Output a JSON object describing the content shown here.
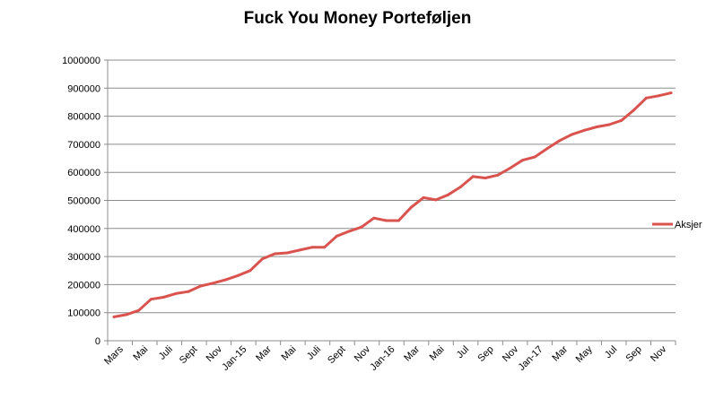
{
  "chart_data": {
    "type": "line",
    "title": "Fuck You Money Porteføljen",
    "xlabel": "",
    "ylabel": "",
    "ylim": [
      0,
      1000000
    ],
    "yticks": [
      0,
      100000,
      200000,
      300000,
      400000,
      500000,
      600000,
      700000,
      800000,
      900000,
      1000000
    ],
    "grid": true,
    "legend_position": "right",
    "color": "#d9534f",
    "x_tick_labels": [
      "Mars",
      "Mai",
      "Juli",
      "Sept",
      "Nov",
      "Jan-15",
      "Mar",
      "Mai",
      "Juli",
      "Sept",
      "Nov",
      "Jan-16",
      "Mar",
      "Mai",
      "Jul",
      "Sep",
      "Nov",
      "Jan-17",
      "Mar",
      "May",
      "Jul",
      "Sep",
      "Nov"
    ],
    "series": [
      {
        "name": "Aksjer",
        "values": [
          85000,
          93000,
          108000,
          148000,
          155000,
          168000,
          175000,
          195000,
          205000,
          217000,
          232000,
          250000,
          292000,
          310000,
          313000,
          323000,
          333000,
          333000,
          373000,
          390000,
          405000,
          437000,
          428000,
          428000,
          475000,
          510000,
          502000,
          520000,
          548000,
          585000,
          580000,
          590000,
          615000,
          643000,
          655000,
          685000,
          713000,
          735000,
          750000,
          762000,
          770000,
          785000,
          822000,
          865000,
          873000,
          883000
        ]
      }
    ]
  }
}
